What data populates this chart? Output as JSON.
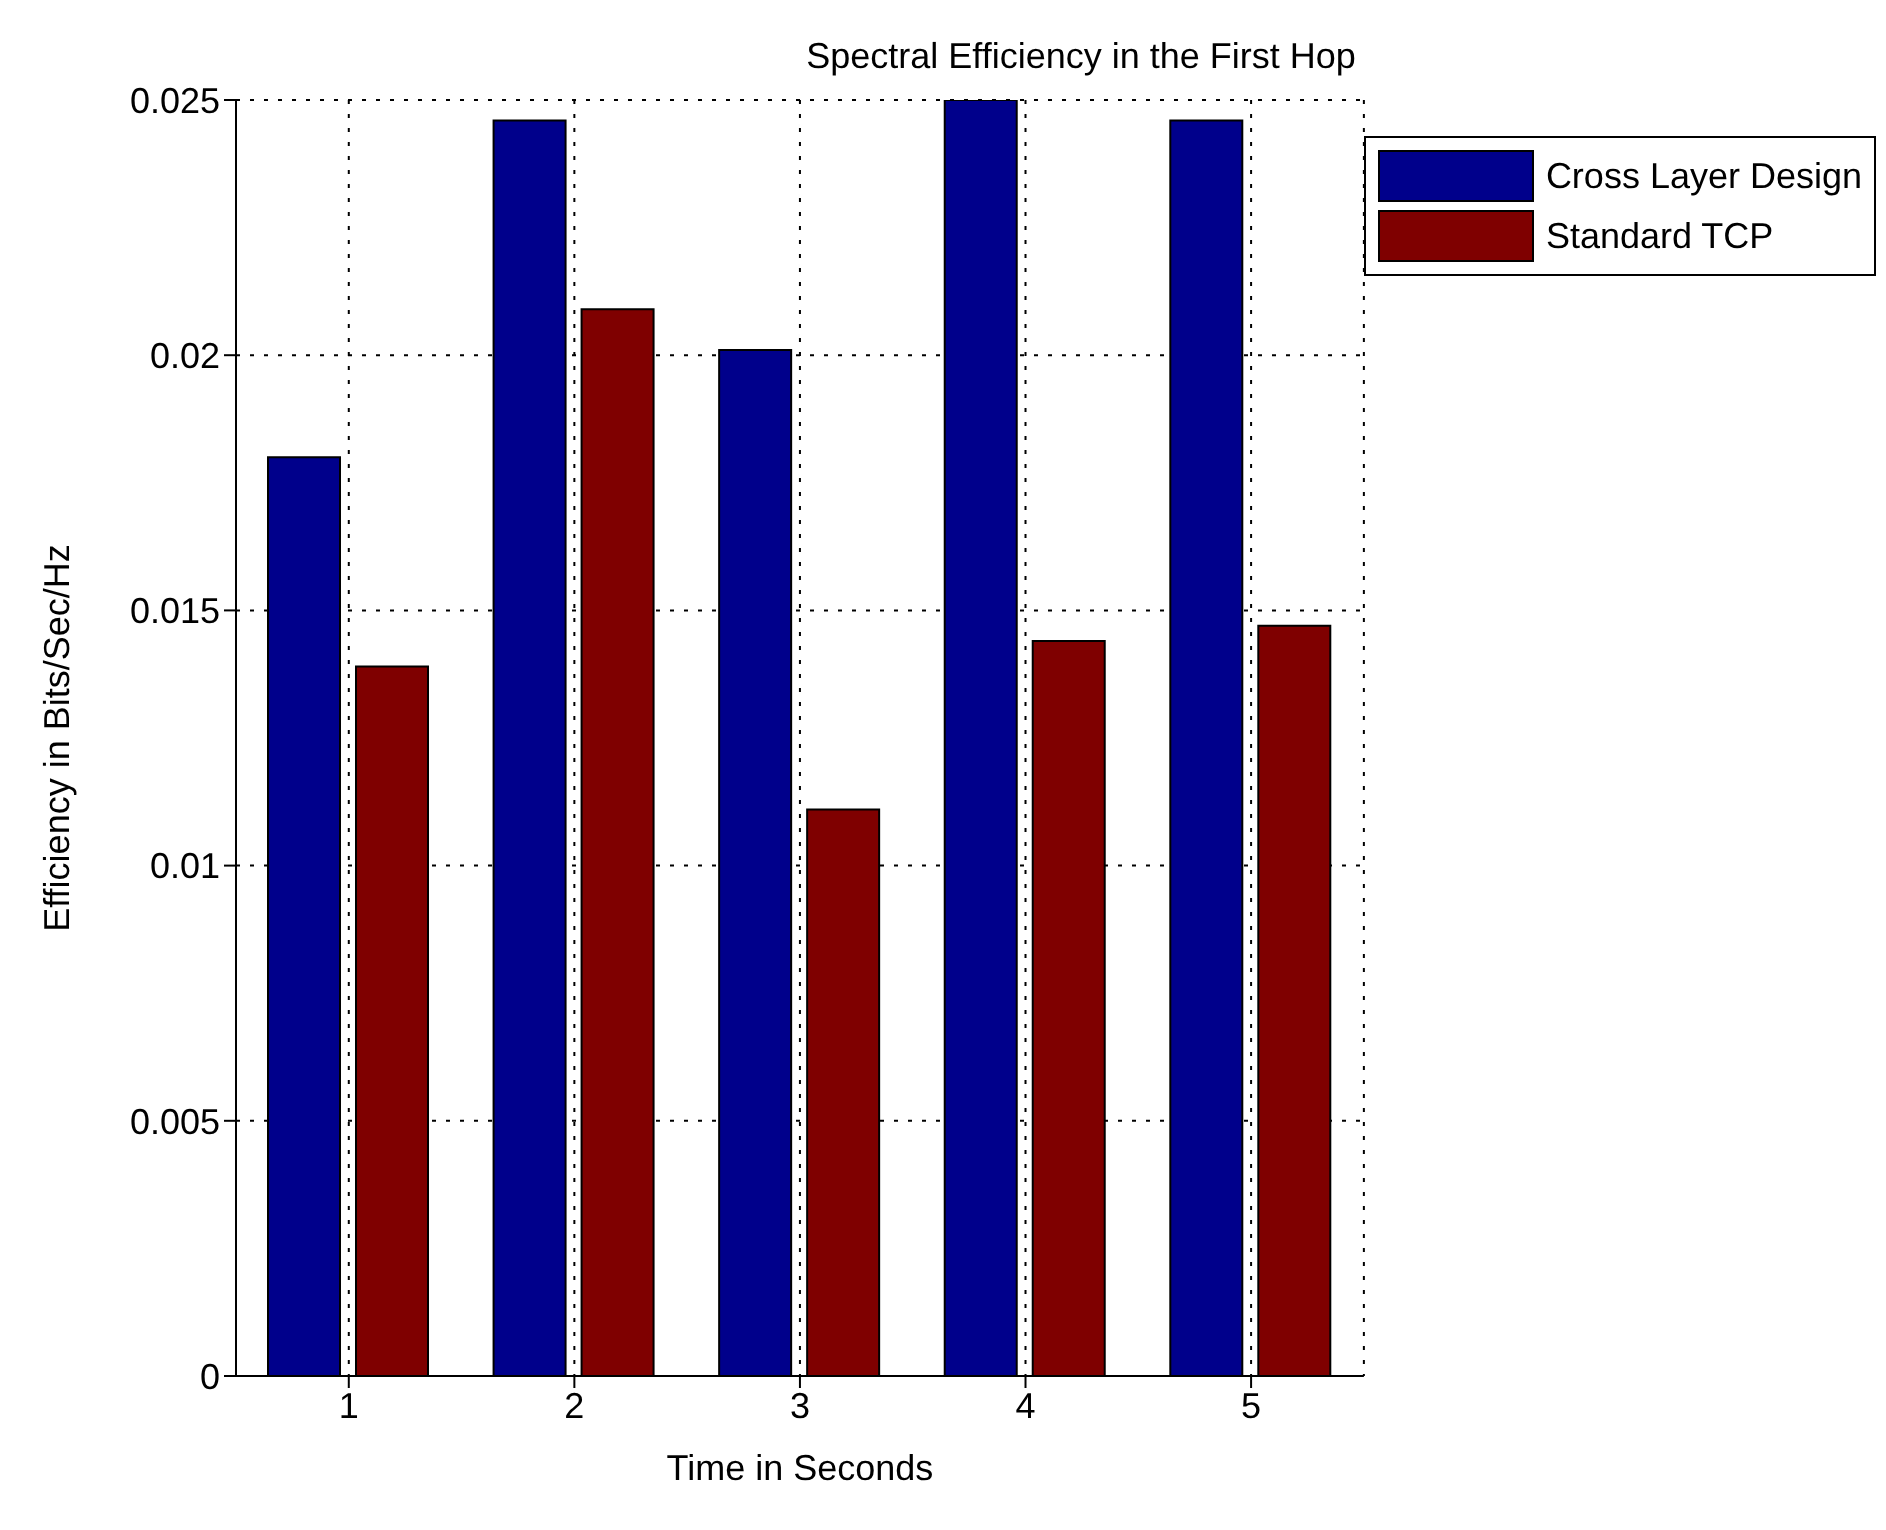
{
  "chart_data": {
    "type": "bar",
    "title": "Spectral Efficiency in the First Hop",
    "xlabel": "Time in Seconds",
    "ylabel": "Efficiency in Bits/Sec/Hz",
    "categories": [
      "1",
      "2",
      "3",
      "4",
      "5"
    ],
    "series": [
      {
        "name": "Cross Layer Design",
        "color": "#00008b",
        "values": [
          0.018,
          0.0246,
          0.0201,
          0.025,
          0.0246
        ]
      },
      {
        "name": "Standard TCP",
        "color": "#7f0000",
        "values": [
          0.0139,
          0.0209,
          0.0111,
          0.0144,
          0.0147
        ]
      }
    ],
    "ylim": [
      0,
      0.025
    ],
    "yticks": [
      0,
      0.005,
      0.01,
      0.015,
      0.02,
      0.025
    ],
    "grid": true,
    "legend": "top right"
  }
}
